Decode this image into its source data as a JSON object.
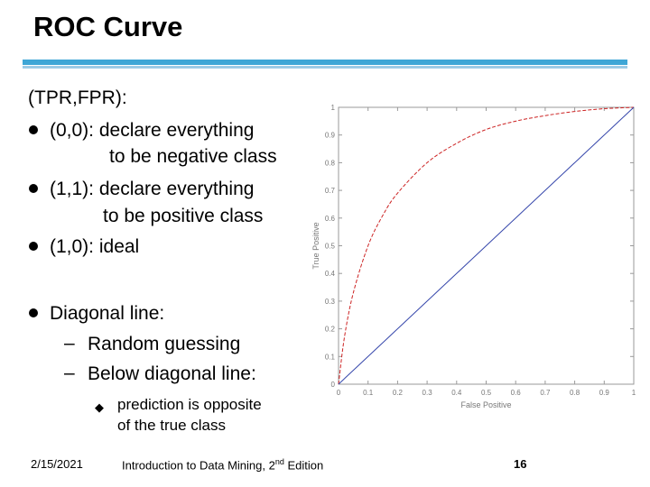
{
  "slide": {
    "title": "ROC Curve",
    "intro": "(TPR,FPR):",
    "bullets": [
      {
        "line1": "(0,0): declare everything",
        "line2": "to be negative class"
      },
      {
        "line1": "(1,1): declare everything",
        "line2": "to be positive class"
      },
      {
        "line1": "(1,0): ideal"
      }
    ],
    "diagonal": {
      "heading": "Diagonal line:",
      "items": [
        "Random guessing",
        "Below diagonal line:"
      ],
      "sub": {
        "line1": "prediction is opposite",
        "line2": "of the true class"
      }
    }
  },
  "footer": {
    "date": "2/15/2021",
    "book_title": "Introduction to Data Mining, 2",
    "book_sup": "nd",
    "book_edition": " Edition",
    "page": "16"
  },
  "chart_data": {
    "type": "line",
    "xlabel": "False Positive",
    "ylabel": "True Positive",
    "xlim": [
      0,
      1
    ],
    "ylim": [
      0,
      1
    ],
    "x_ticks": [
      "0",
      "0.1",
      "0.2",
      "0.3",
      "0.4",
      "0.5",
      "0.6",
      "0.7",
      "0.8",
      "0.9",
      "1"
    ],
    "y_ticks": [
      "0",
      "0.1",
      "0.2",
      "0.3",
      "0.4",
      "0.5",
      "0.6",
      "0.7",
      "0.8",
      "0.9",
      "1"
    ],
    "grid": false,
    "series": [
      {
        "color": "#cc2222",
        "style": "dashed",
        "x": [
          0,
          0.02,
          0.05,
          0.1,
          0.15,
          0.2,
          0.3,
          0.4,
          0.5,
          0.6,
          0.7,
          0.8,
          0.9,
          1.0
        ],
        "y": [
          0,
          0.17,
          0.33,
          0.5,
          0.61,
          0.69,
          0.8,
          0.87,
          0.92,
          0.95,
          0.97,
          0.985,
          0.995,
          1.0
        ]
      },
      {
        "color": "#3344aa",
        "style": "solid",
        "x": [
          0,
          1
        ],
        "y": [
          0,
          1
        ]
      }
    ]
  }
}
